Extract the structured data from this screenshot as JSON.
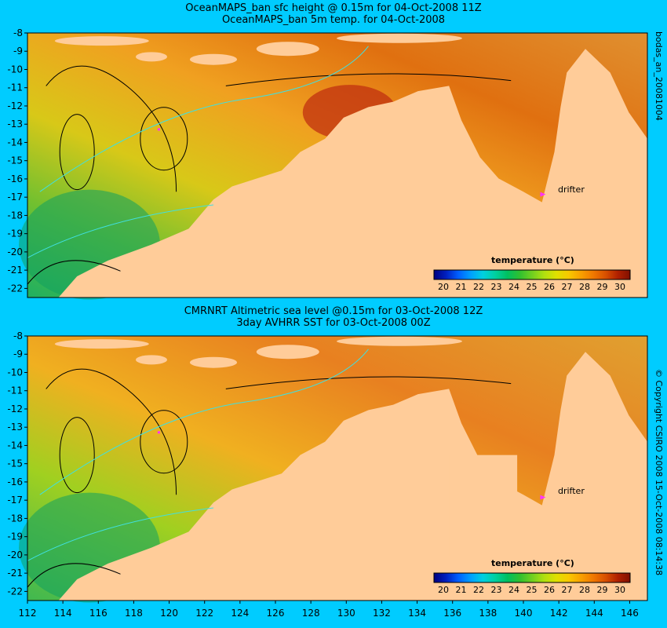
{
  "panels": [
    {
      "title_line1": "OceanMAPS_ban sfc height @ 0.15m for 04-Oct-2008 11Z",
      "title_line2": "OceanMAPS_ban 5m temp. for 04-Oct-2008",
      "side_label": "bodas_an_20081004",
      "legend_title": "temperature (°C)",
      "drifter_label": "drifter"
    },
    {
      "title_line1": "CMRNRT Altimetric sea level  @0.15m  for 03-Oct-2008 12Z",
      "title_line2": "3day AVHRR SST for 03-Oct-2008 00Z",
      "side_label": "© Copyright CSIRO 2008   15-Oct-2008 08:14:38",
      "legend_title": "temperature (°C)",
      "drifter_label": "drifter"
    }
  ],
  "map": {
    "lat_labels": [
      "-8",
      "-9",
      "-10",
      "-11",
      "-12",
      "-13",
      "-14",
      "-15",
      "-16",
      "-17",
      "-18",
      "-19",
      "-20",
      "-21",
      "-22"
    ],
    "lon_labels": [
      "112",
      "114",
      "116",
      "118",
      "120",
      "122",
      "124",
      "126",
      "128",
      "130",
      "132",
      "134",
      "136",
      "138",
      "140",
      "142",
      "144",
      "146"
    ],
    "lat_range": [
      -22.5,
      -8
    ],
    "lon_range": [
      112,
      147
    ]
  },
  "colorbar": {
    "labels": [
      "20",
      "21",
      "22",
      "23",
      "24",
      "25",
      "26",
      "27",
      "28",
      "29",
      "30"
    ],
    "colors": [
      "#000080",
      "#0020c0",
      "#0060ff",
      "#00a0ff",
      "#00d0e0",
      "#00d0a0",
      "#00c060",
      "#30c030",
      "#70d020",
      "#b0e010",
      "#e0e000",
      "#f8c800",
      "#f8a000",
      "#f07800",
      "#d85000",
      "#b02000",
      "#801000"
    ]
  },
  "colors": {
    "background": "#00ccff",
    "land": "#ffcc99",
    "drifter": "#ff33ff"
  }
}
